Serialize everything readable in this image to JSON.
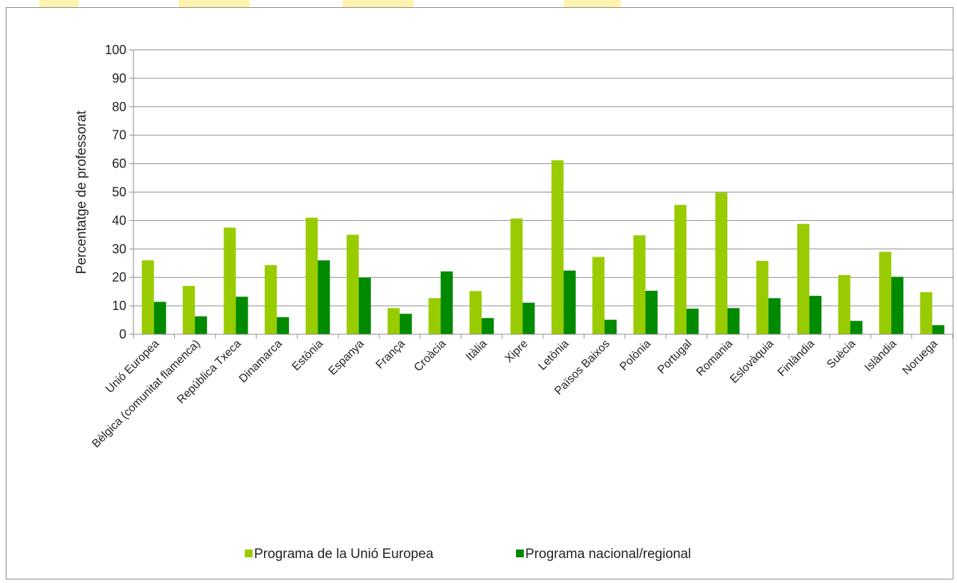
{
  "chart_data": {
    "type": "bar",
    "title": "",
    "xlabel": "",
    "ylabel": "Percentatge de professorat",
    "ylim": [
      0,
      100
    ],
    "yticks": [
      0,
      10,
      20,
      30,
      40,
      50,
      60,
      70,
      80,
      90,
      100
    ],
    "grid": true,
    "legend_position": "bottom",
    "categories": [
      "Unió Europea",
      "Bèlgica (comunitat flamenca)",
      "República Txeca",
      "Dinamarca",
      "Estònia",
      "Espanya",
      "França",
      "Croàcia",
      "Itàlia",
      "Xipre",
      "Letònia",
      "Països Baixos",
      "Polònia",
      "Portugal",
      "Romania",
      "Eslovàquia",
      "Finlàndia",
      "Suècia",
      "Islàndia",
      "Noruega"
    ],
    "series": [
      {
        "name": "Programa de la Unió Europea",
        "color": "#99cc00",
        "values": [
          26,
          17,
          37.5,
          24.3,
          41,
          35,
          9.2,
          12.7,
          15.2,
          40.7,
          61.2,
          27.2,
          34.8,
          45.5,
          49.8,
          25.8,
          38.8,
          20.8,
          29,
          14.8
        ]
      },
      {
        "name": "Programa nacional/regional",
        "color": "#008a00",
        "values": [
          11.4,
          6.3,
          13.2,
          6,
          26,
          19.9,
          7.2,
          22.1,
          5.7,
          11.1,
          22.4,
          5.1,
          15.3,
          9,
          9.2,
          12.7,
          13.5,
          4.7,
          20.2,
          3.2
        ]
      }
    ]
  }
}
